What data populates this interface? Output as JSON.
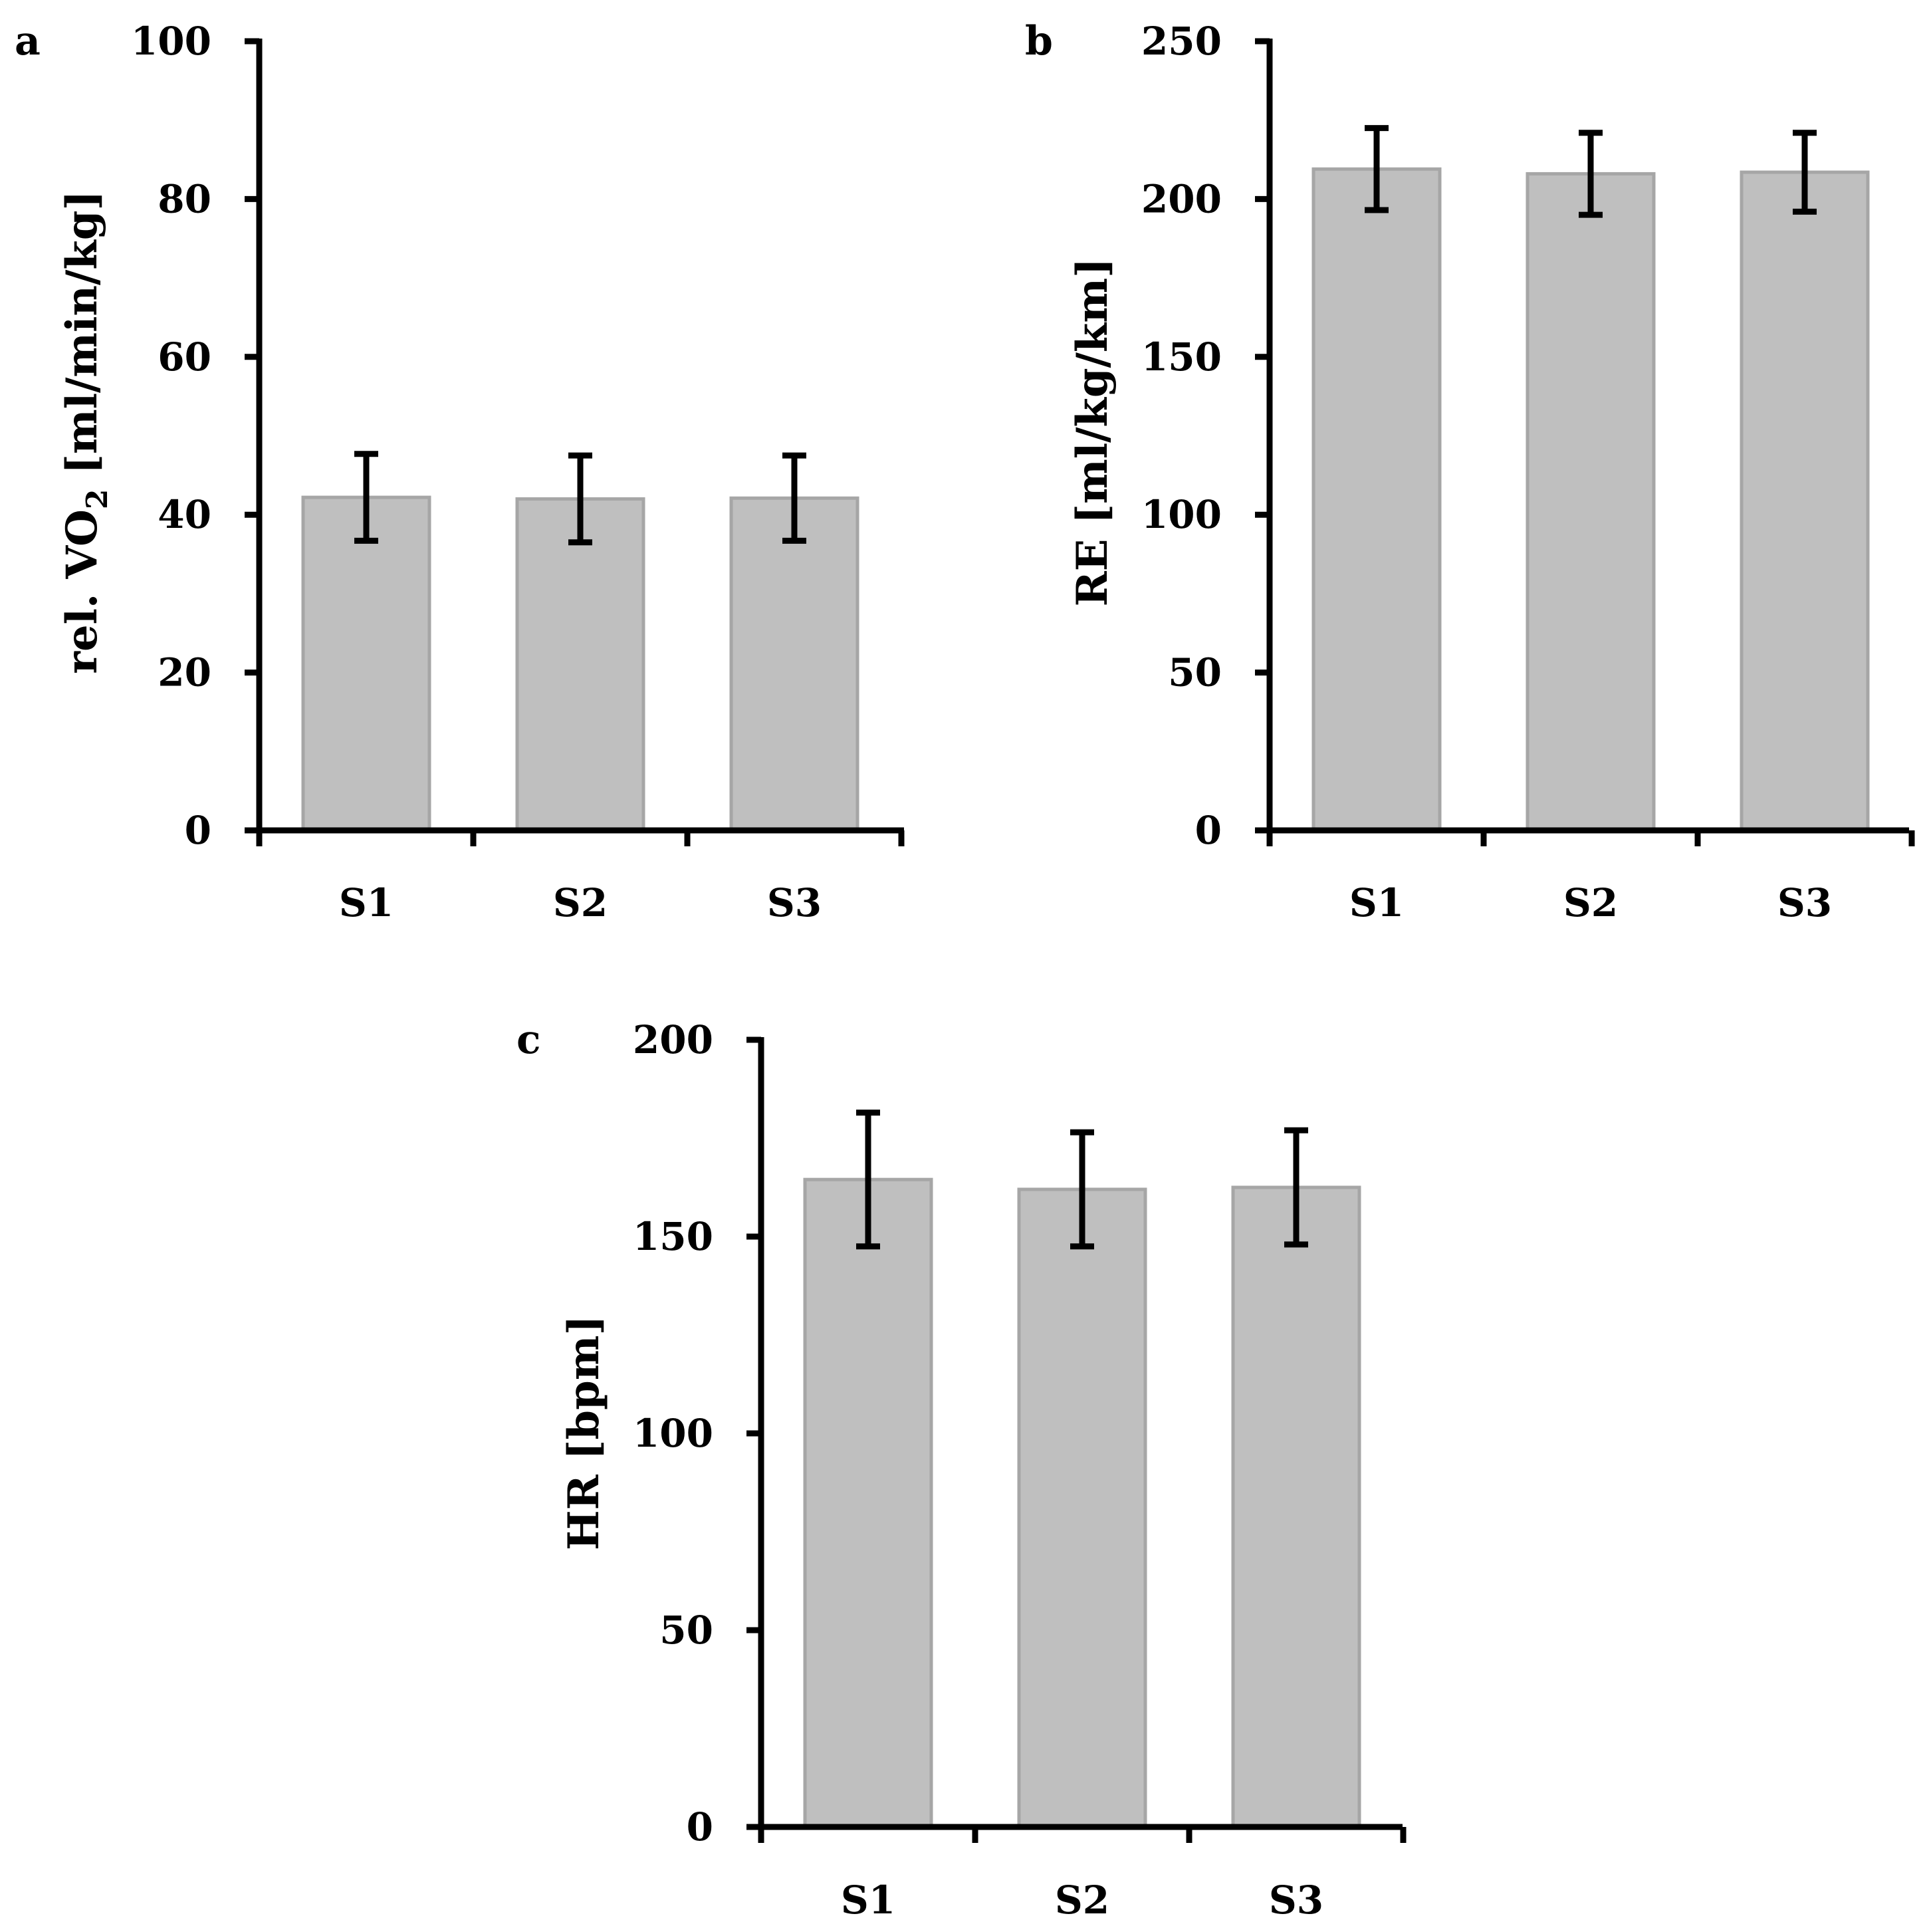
{
  "chart_data": [
    {
      "panel": "a",
      "type": "bar",
      "categories": [
        "S1",
        "S2",
        "S3"
      ],
      "values": [
        42.2,
        42.0,
        42.1
      ],
      "error": [
        5.5,
        5.5,
        5.4
      ],
      "ylim": [
        0,
        100
      ],
      "yticks": [
        "0",
        "20",
        "40",
        "60",
        "80",
        "100"
      ],
      "ylabel_main": "rel. VO",
      "ylabel_sub": "2",
      "ylabel_rest": " [ml/min/kg]",
      "bar_color": "#bfbfbf"
    },
    {
      "panel": "b",
      "type": "bar",
      "categories": [
        "S1",
        "S2",
        "S3"
      ],
      "values": [
        209.5,
        208,
        208.5
      ],
      "error": [
        13,
        13,
        12.5
      ],
      "ylim": [
        0,
        250
      ],
      "yticks": [
        "0",
        "50",
        "100",
        "150",
        "200",
        "250"
      ],
      "ylabel_main": "RE [ml/kg/km]",
      "ylabel_sub": "",
      "ylabel_rest": "",
      "bar_color": "#bfbfbf"
    },
    {
      "panel": "c",
      "type": "bar",
      "categories": [
        "S1",
        "S2",
        "S3"
      ],
      "values": [
        164.5,
        162,
        162.5
      ],
      "error": [
        17,
        14.5,
        14.5
      ],
      "ylim": [
        0,
        200
      ],
      "yticks": [
        "0",
        "50",
        "100",
        "150",
        "200"
      ],
      "ylabel_main": "HR [bpm]",
      "ylabel_sub": "",
      "ylabel_rest": "",
      "bar_color": "#bfbfbf"
    }
  ]
}
